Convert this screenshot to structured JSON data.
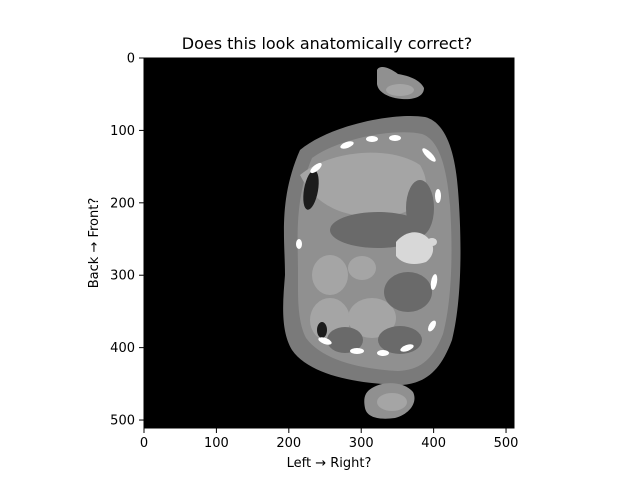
{
  "chart_data": {
    "type": "heatmap",
    "title": "Does this look anatomically correct?",
    "xlabel": "Left → Right?",
    "ylabel": "Back → Front?",
    "xlim": [
      0,
      511
    ],
    "ylim": [
      511,
      0
    ],
    "xticks": [
      0,
      100,
      200,
      300,
      400,
      500
    ],
    "yticks": [
      0,
      100,
      200,
      300,
      400,
      500
    ],
    "grid": false,
    "colormap": "gray",
    "image_content": "axial CT segmentation slice",
    "colors": {
      "background": "#000000",
      "body_outline": "#7a7a7a",
      "soft_tissue": "#909090",
      "organ_light": "#a5a5a5",
      "organ_dark": "#6a6a6a",
      "bone": "#ffffff",
      "air": "#1c1c1c"
    }
  }
}
